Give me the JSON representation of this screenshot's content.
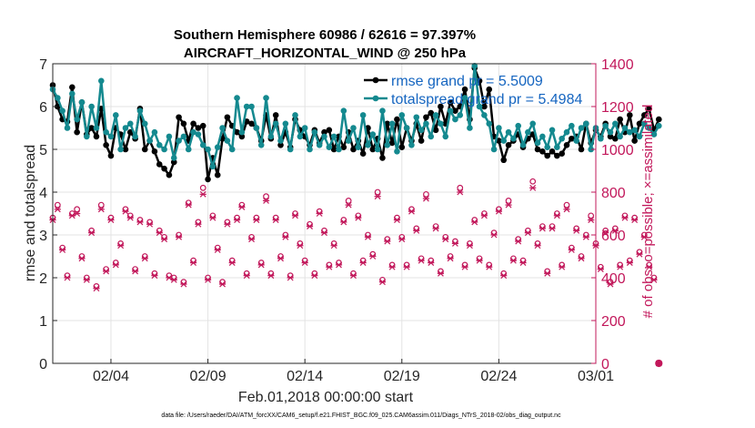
{
  "chart_data": {
    "type": "line",
    "title": "Southern Hemisphere 60986 / 62616 = 97.397%",
    "subtitle": "AIRCRAFT_HORIZONTAL_WIND @ 250 hPa",
    "xlabel": "Feb.01,2018 00:00:00 start",
    "ylabel": "rmse and totalspread",
    "ylabel_right": "# of obs: o=possible; ×=assimilated",
    "footnote": "data file: /Users/raeder/DAI/ATM_forcXX/CAM6_setup/f.e21.FHIST_BGC.f09_025.CAM6assim.011/Diags_NTrS_2018-02/obs_diag_output.nc",
    "xlim": [
      1,
      29
    ],
    "ylim": [
      0,
      7
    ],
    "ylim_right": [
      0,
      1400
    ],
    "x_ticks": [
      {
        "value": 4,
        "label": "02/04"
      },
      {
        "value": 9,
        "label": "02/09"
      },
      {
        "value": 14,
        "label": "02/14"
      },
      {
        "value": 19,
        "label": "02/19"
      },
      {
        "value": 24,
        "label": "02/24"
      },
      {
        "value": 29,
        "label": "03/01"
      }
    ],
    "y_ticks": [
      "0",
      "1",
      "2",
      "3",
      "4",
      "5",
      "6",
      "7"
    ],
    "y_ticks_right": [
      "0",
      "200",
      "400",
      "600",
      "800",
      "1000",
      "1200",
      "1400"
    ],
    "grid": true,
    "legend_position": "top-right",
    "x_start": 1.0,
    "x_step": 0.25,
    "series": [
      {
        "name": "rmse grand pr = 5.5009",
        "color": "#000000",
        "marker": "dot",
        "axis": "left",
        "values": [
          6.5,
          6.0,
          5.7,
          5.65,
          6.45,
          5.4,
          6.1,
          5.35,
          5.5,
          5.3,
          5.95,
          5.1,
          4.85,
          5.5,
          5.35,
          5.0,
          5.4,
          5.25,
          5.95,
          5.0,
          5.2,
          4.95,
          4.65,
          4.55,
          4.4,
          4.7,
          5.75,
          5.6,
          5.2,
          5.6,
          5.5,
          5.55,
          4.3,
          4.8,
          4.4,
          5.25,
          5.75,
          5.55,
          5.4,
          5.3,
          5.65,
          5.6,
          5.5,
          5.2,
          5.8,
          5.25,
          5.8,
          5.1,
          5.4,
          5.05,
          5.7,
          5.45,
          5.3,
          5.1,
          5.45,
          5.15,
          5.4,
          5.45,
          5.0,
          5.3,
          5.05,
          5.4,
          5.0,
          5.2,
          4.9,
          5.5,
          5.0,
          5.25,
          4.8,
          5.6,
          5.15,
          5.7,
          5.05,
          5.5,
          5.2,
          5.6,
          5.2,
          5.75,
          5.85,
          5.45,
          6.0,
          5.6,
          6.1,
          5.9,
          6.0,
          6.4,
          5.7,
          6.9,
          6.6,
          6.0,
          6.4,
          5.3,
          5.2,
          4.75,
          5.1,
          5.2,
          5.35,
          5.05,
          5.25,
          5.35,
          5.0,
          4.95,
          4.85,
          4.95,
          4.85,
          4.9,
          5.1,
          5.25,
          5.3,
          5.0,
          5.6,
          5.15,
          5.45,
          5.3,
          5.6,
          5.3,
          5.25,
          5.7,
          5.4,
          5.8,
          5.2,
          5.6,
          5.8,
          5.95,
          5.45,
          5.7
        ]
      },
      {
        "name": "totalspread grand pr = 5.4984",
        "color": "#14898f",
        "marker": "dot",
        "axis": "left",
        "values": [
          6.4,
          6.2,
          5.9,
          5.5,
          6.3,
          5.7,
          6.1,
          5.3,
          6.0,
          5.5,
          6.6,
          5.4,
          5.3,
          5.8,
          5.0,
          5.5,
          5.6,
          5.3,
          5.9,
          5.6,
          5.2,
          5.4,
          5.1,
          5.0,
          5.3,
          4.8,
          5.2,
          5.3,
          5.0,
          5.4,
          5.35,
          5.1,
          5.0,
          4.6,
          5.05,
          5.5,
          5.2,
          5.0,
          6.2,
          5.4,
          6.0,
          6.0,
          5.5,
          5.1,
          6.2,
          5.3,
          5.6,
          5.2,
          5.6,
          5.0,
          5.8,
          5.3,
          5.5,
          5.0,
          5.4,
          5.1,
          5.3,
          5.05,
          5.3,
          5.0,
          5.9,
          5.2,
          5.5,
          5.05,
          5.8,
          5.1,
          5.35,
          5.0,
          5.9,
          5.1,
          5.6,
          4.95,
          5.8,
          5.5,
          5.1,
          5.75,
          5.45,
          5.6,
          5.3,
          5.8,
          5.6,
          5.3,
          5.9,
          5.7,
          5.8,
          6.2,
          5.5,
          6.95,
          6.0,
          5.8,
          5.6,
          5.0,
          5.5,
          5.2,
          5.4,
          5.25,
          5.55,
          5.1,
          5.4,
          5.6,
          5.15,
          5.3,
          5.05,
          5.45,
          5.05,
          5.25,
          5.4,
          5.55,
          5.2,
          5.5,
          5.6,
          5.0,
          5.5,
          5.25,
          5.55,
          5.4,
          5.6,
          5.3,
          5.5,
          5.4,
          5.45,
          5.3,
          5.6,
          5.5,
          5.35,
          5.55
        ]
      },
      {
        "name": "possible",
        "color": "#c2185b",
        "marker": "o",
        "axis": "right",
        "values": [
          680,
          740,
          540,
          410,
          700,
          720,
          500,
          400,
          620,
          360,
          740,
          440,
          680,
          470,
          560,
          720,
          690,
          440,
          670,
          500,
          660,
          420,
          620,
          590,
          410,
          400,
          600,
          380,
          750,
          480,
          660,
          820,
          400,
          690,
          540,
          380,
          660,
          480,
          680,
          740,
          420,
          590,
          680,
          470,
          780,
          420,
          680,
          500,
          600,
          410,
          700,
          560,
          480,
          650,
          420,
          710,
          620,
          460,
          560,
          470,
          670,
          760,
          420,
          690,
          480,
          600,
          510,
          800,
          390,
          580,
          460,
          680,
          590,
          460,
          720,
          630,
          490,
          790,
          480,
          640,
          430,
          590,
          500,
          570,
          820,
          460,
          560,
          670,
          490,
          700,
          460,
          610,
          720,
          420,
          760,
          490,
          580,
          480,
          620,
          850,
          560,
          640,
          430,
          640,
          700,
          460,
          740,
          540,
          630,
          500,
          600,
          690,
          560,
          450,
          620,
          380,
          630,
          460,
          690,
          480,
          680,
          520,
          600,
          460,
          400,
          0
        ]
      },
      {
        "name": "assimilated",
        "color": "#c2185b",
        "marker": "x",
        "axis": "right",
        "values": [
          670,
          720,
          530,
          400,
          690,
          700,
          490,
          390,
          610,
          350,
          720,
          430,
          670,
          460,
          550,
          710,
          680,
          430,
          660,
          490,
          650,
          410,
          610,
          580,
          400,
          390,
          590,
          370,
          740,
          470,
          650,
          790,
          390,
          680,
          530,
          370,
          650,
          470,
          670,
          730,
          410,
          580,
          670,
          460,
          760,
          410,
          670,
          490,
          590,
          400,
          690,
          550,
          470,
          640,
          410,
          700,
          610,
          450,
          550,
          460,
          660,
          740,
          410,
          680,
          470,
          590,
          500,
          780,
          380,
          570,
          450,
          670,
          580,
          450,
          710,
          620,
          480,
          770,
          470,
          630,
          420,
          580,
          490,
          560,
          800,
          450,
          550,
          660,
          480,
          690,
          450,
          600,
          710,
          410,
          740,
          480,
          570,
          470,
          610,
          820,
          550,
          630,
          420,
          630,
          690,
          450,
          720,
          530,
          620,
          490,
          590,
          670,
          550,
          440,
          610,
          370,
          620,
          450,
          680,
          470,
          670,
          510,
          590,
          450,
          390,
          0
        ]
      }
    ]
  }
}
